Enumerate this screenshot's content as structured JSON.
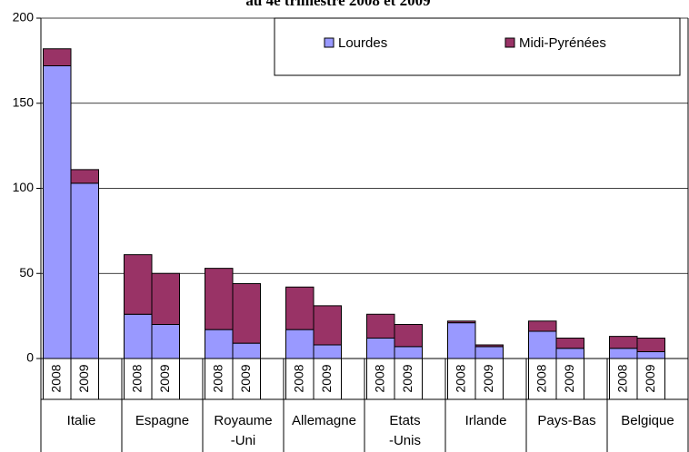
{
  "chart_data": {
    "type": "stacked_bar",
    "title": "au 4e trimestre 2008 et 2009",
    "categories": [
      "Italie",
      "Espagne",
      "Royaume\n-Uni",
      "Allemagne",
      "Etats\n-Unis",
      "Irlande",
      "Pays-Bas",
      "Belgique"
    ],
    "years": [
      "2008",
      "2009"
    ],
    "series": [
      {
        "name": "Lourdes",
        "color": "#9999ff",
        "values": [
          [
            172,
            103
          ],
          [
            26,
            20
          ],
          [
            17,
            9
          ],
          [
            17,
            8
          ],
          [
            12,
            7
          ],
          [
            21,
            7
          ],
          [
            16,
            6
          ],
          [
            6,
            4
          ]
        ]
      },
      {
        "name": "Midi-Pyrénées",
        "color": "#993366",
        "values": [
          [
            10,
            8
          ],
          [
            35,
            30
          ],
          [
            36,
            35
          ],
          [
            25,
            23
          ],
          [
            14,
            13
          ],
          [
            1,
            1
          ],
          [
            6,
            6
          ],
          [
            7,
            8
          ]
        ]
      }
    ],
    "ylim": [
      0,
      200
    ],
    "yticks": [
      0,
      50,
      100,
      150,
      200
    ],
    "grid": true
  }
}
